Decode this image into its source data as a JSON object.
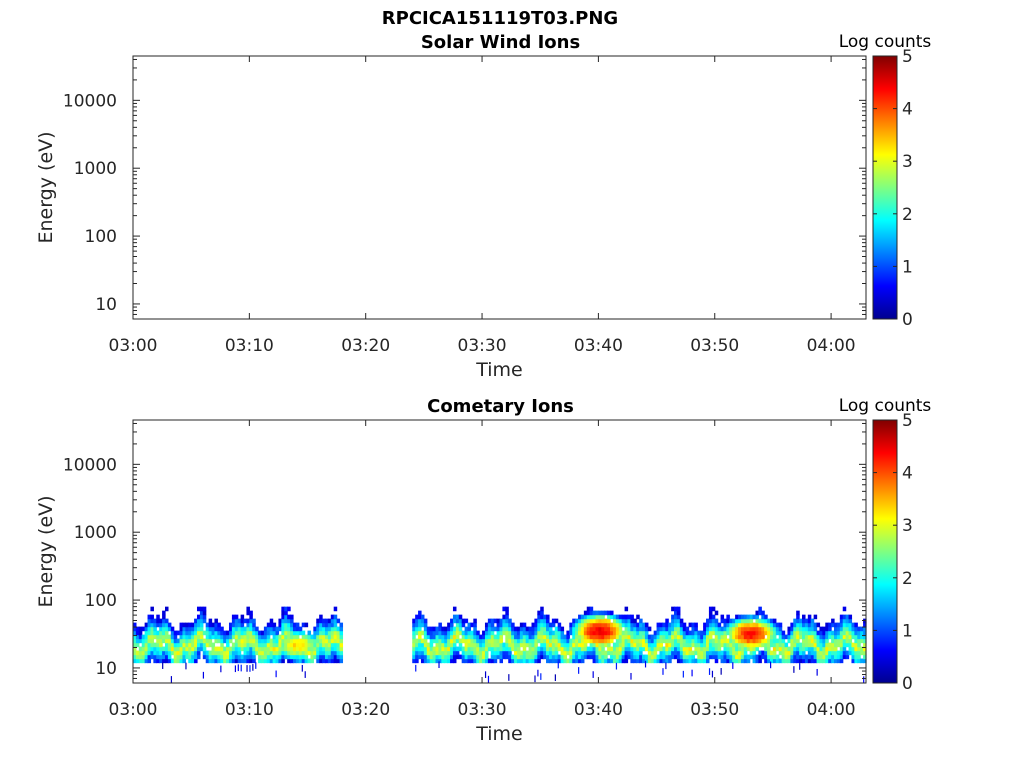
{
  "figure": {
    "title": "RPCICA151119T03.PNG"
  },
  "colorbar": {
    "label": "Log counts",
    "ticks": [
      "0",
      "1",
      "2",
      "3",
      "4",
      "5"
    ],
    "range": [
      0,
      5
    ],
    "colormap": [
      "#00008f",
      "#0000ff",
      "#0080ff",
      "#00ffff",
      "#80ff80",
      "#ffff00",
      "#ff8000",
      "#ff0000",
      "#800000"
    ]
  },
  "chart_data": [
    {
      "type": "heatmap",
      "title": "Solar Wind Ions",
      "xlabel": "Time",
      "ylabel": "Energy (eV)",
      "xticks": [
        "03:00",
        "03:10",
        "03:20",
        "03:30",
        "03:40",
        "03:50",
        "04:00"
      ],
      "yticks": [
        "10",
        "100",
        "1000",
        "10000"
      ],
      "xlim": [
        "03:00",
        "04:03"
      ],
      "ylim": [
        6,
        45000
      ],
      "yscale": "log",
      "cells": []
    },
    {
      "type": "heatmap",
      "title": "Cometary Ions",
      "xlabel": "Time",
      "ylabel": "Energy (eV)",
      "xticks": [
        "03:00",
        "03:10",
        "03:20",
        "03:30",
        "03:40",
        "03:50",
        "04:00"
      ],
      "yticks": [
        "10",
        "100",
        "1000",
        "10000"
      ],
      "xlim": [
        "03:00",
        "04:03"
      ],
      "ylim": [
        6,
        45000
      ],
      "yscale": "log",
      "energy_range_eV": [
        12,
        80
      ],
      "data_intervals": [
        [
          "03:00",
          "03:18"
        ],
        [
          "03:24",
          "04:03"
        ]
      ],
      "band_peak_eV": 22,
      "peak_log_counts": 4.5,
      "hotspots": [
        {
          "time": "03:40",
          "energy_eV": 35,
          "log_counts": 4.5
        },
        {
          "time": "03:53",
          "energy_eV": 32,
          "log_counts": 4.3
        },
        {
          "time": "03:14",
          "energy_eV": 22,
          "log_counts": 3.3
        }
      ]
    }
  ]
}
